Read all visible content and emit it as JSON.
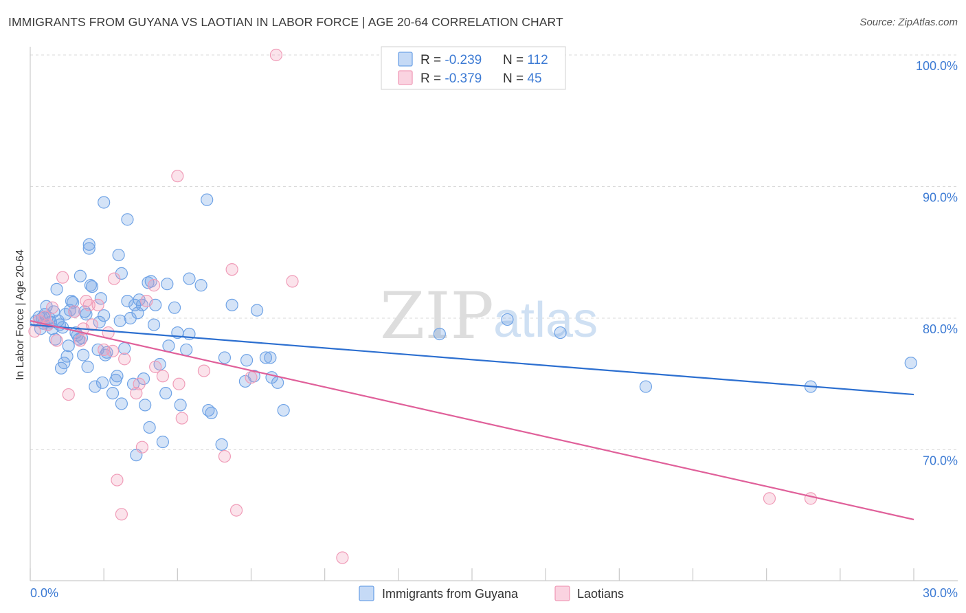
{
  "title": "IMMIGRANTS FROM GUYANA VS LAOTIAN IN LABOR FORCE | AGE 20-64 CORRELATION CHART",
  "source": "Source: ZipAtlas.com",
  "watermark": {
    "zip": "ZIP",
    "atlas": "atlas"
  },
  "legend_top": {
    "rows": [
      {
        "r_label": "R = ",
        "r_value": "-0.239",
        "n_label": "N = ",
        "n_value": "112",
        "color": "#6fa3e6"
      },
      {
        "r_label": "R = ",
        "r_value": "-0.379",
        "n_label": "N = ",
        "n_value": "45",
        "color": "#f09cb8"
      }
    ]
  },
  "chart_data": {
    "type": "scatter",
    "title": "IMMIGRANTS FROM GUYANA VS LAOTIAN IN LABOR FORCE | AGE 20-64 CORRELATION CHART",
    "xlabel": "",
    "ylabel": "In Labor Force | Age 20-64",
    "xlim": [
      0,
      30
    ],
    "ylim": [
      60,
      100
    ],
    "x_tick_labels": {
      "min": "0.0%",
      "max": "30.0%"
    },
    "y_ticks": [
      {
        "value": 70,
        "label": "70.0%"
      },
      {
        "value": 80,
        "label": "80.0%"
      },
      {
        "value": 90,
        "label": "90.0%"
      },
      {
        "value": 100,
        "label": "100.0%"
      }
    ],
    "series": [
      {
        "name": "Immigrants from Guyana",
        "color": "#6fa3e6",
        "line_color": "#2c6fd0",
        "trend": {
          "x0": 0.0,
          "y0": 79.5,
          "x1": 30.0,
          "y1": 74.2
        },
        "points": [
          [
            0.2,
            79.8
          ],
          [
            0.3,
            80.1
          ],
          [
            0.35,
            79.2
          ],
          [
            0.4,
            80.0
          ],
          [
            0.45,
            79.6
          ],
          [
            0.5,
            80.3
          ],
          [
            0.55,
            80.9
          ],
          [
            0.6,
            79.5
          ],
          [
            0.65,
            80.0
          ],
          [
            0.7,
            79.7
          ],
          [
            0.75,
            79.2
          ],
          [
            0.8,
            80.5
          ],
          [
            0.85,
            78.4
          ],
          [
            0.9,
            82.2
          ],
          [
            0.95,
            79.8
          ],
          [
            1.0,
            79.5
          ],
          [
            1.05,
            76.2
          ],
          [
            1.1,
            79.3
          ],
          [
            1.15,
            76.6
          ],
          [
            1.2,
            80.3
          ],
          [
            1.25,
            77.1
          ],
          [
            1.3,
            77.9
          ],
          [
            1.35,
            80.6
          ],
          [
            1.4,
            81.3
          ],
          [
            1.45,
            81.2
          ],
          [
            1.5,
            80.5
          ],
          [
            1.55,
            78.9
          ],
          [
            1.6,
            78.7
          ],
          [
            1.65,
            78.4
          ],
          [
            1.7,
            83.2
          ],
          [
            1.75,
            78.5
          ],
          [
            1.8,
            77.2
          ],
          [
            1.85,
            80.5
          ],
          [
            1.9,
            80.3
          ],
          [
            1.95,
            76.3
          ],
          [
            2.0,
            85.6
          ],
          [
            2.0,
            85.3
          ],
          [
            2.05,
            82.5
          ],
          [
            2.1,
            82.4
          ],
          [
            2.2,
            74.8
          ],
          [
            2.3,
            77.6
          ],
          [
            2.35,
            79.7
          ],
          [
            2.4,
            81.5
          ],
          [
            2.45,
            75.1
          ],
          [
            2.5,
            80.2
          ],
          [
            2.5,
            88.8
          ],
          [
            2.55,
            77.2
          ],
          [
            2.6,
            77.4
          ],
          [
            2.8,
            74.3
          ],
          [
            2.9,
            75.3
          ],
          [
            2.95,
            75.6
          ],
          [
            3.0,
            84.8
          ],
          [
            3.05,
            79.8
          ],
          [
            3.1,
            73.5
          ],
          [
            3.1,
            83.4
          ],
          [
            3.2,
            77.7
          ],
          [
            3.3,
            87.5
          ],
          [
            3.3,
            81.3
          ],
          [
            3.4,
            80.0
          ],
          [
            3.5,
            75.0
          ],
          [
            3.55,
            81.0
          ],
          [
            3.6,
            69.6
          ],
          [
            3.65,
            80.4
          ],
          [
            3.7,
            81.4
          ],
          [
            3.8,
            81.0
          ],
          [
            3.85,
            75.4
          ],
          [
            3.9,
            73.4
          ],
          [
            4.0,
            82.7
          ],
          [
            4.05,
            71.7
          ],
          [
            4.1,
            82.8
          ],
          [
            4.2,
            79.5
          ],
          [
            4.25,
            81.0
          ],
          [
            4.4,
            76.5
          ],
          [
            4.5,
            70.6
          ],
          [
            4.6,
            74.3
          ],
          [
            4.65,
            82.6
          ],
          [
            4.7,
            77.9
          ],
          [
            4.9,
            80.8
          ],
          [
            5.0,
            78.9
          ],
          [
            5.1,
            73.4
          ],
          [
            5.3,
            77.6
          ],
          [
            5.4,
            78.8
          ],
          [
            5.4,
            83.0
          ],
          [
            5.8,
            82.5
          ],
          [
            6.0,
            89.0
          ],
          [
            6.05,
            73.0
          ],
          [
            6.15,
            72.8
          ],
          [
            6.5,
            70.4
          ],
          [
            6.6,
            77.0
          ],
          [
            6.85,
            81.0
          ],
          [
            7.3,
            75.2
          ],
          [
            7.35,
            76.8
          ],
          [
            7.6,
            75.6
          ],
          [
            7.7,
            80.6
          ],
          [
            8.0,
            77.0
          ],
          [
            8.15,
            77.0
          ],
          [
            8.2,
            75.5
          ],
          [
            8.4,
            75.1
          ],
          [
            8.6,
            73.0
          ],
          [
            13.9,
            78.8
          ],
          [
            16.2,
            79.9
          ],
          [
            18.0,
            78.9
          ],
          [
            20.9,
            74.8
          ],
          [
            26.5,
            74.8
          ],
          [
            29.9,
            76.6
          ]
        ]
      },
      {
        "name": "Laotians",
        "color": "#f09cb8",
        "line_color": "#e0609a",
        "trend": {
          "x0": 0.0,
          "y0": 79.8,
          "x1": 30.0,
          "y1": 64.7
        },
        "points": [
          [
            0.15,
            79.0
          ],
          [
            0.3,
            79.8
          ],
          [
            0.5,
            80.1
          ],
          [
            0.6,
            79.5
          ],
          [
            0.75,
            80.8
          ],
          [
            0.9,
            78.3
          ],
          [
            1.1,
            83.1
          ],
          [
            1.3,
            74.2
          ],
          [
            1.5,
            80.5
          ],
          [
            1.7,
            78.3
          ],
          [
            1.8,
            79.2
          ],
          [
            1.9,
            81.3
          ],
          [
            2.0,
            81.0
          ],
          [
            2.1,
            79.5
          ],
          [
            2.3,
            81.0
          ],
          [
            2.5,
            77.6
          ],
          [
            2.65,
            78.9
          ],
          [
            2.8,
            77.5
          ],
          [
            2.85,
            83.0
          ],
          [
            2.95,
            67.7
          ],
          [
            3.1,
            65.1
          ],
          [
            3.2,
            76.9
          ],
          [
            3.6,
            74.3
          ],
          [
            3.7,
            75.0
          ],
          [
            3.8,
            70.2
          ],
          [
            3.95,
            81.3
          ],
          [
            4.2,
            82.5
          ],
          [
            4.25,
            76.3
          ],
          [
            4.5,
            75.6
          ],
          [
            5.0,
            90.8
          ],
          [
            5.05,
            75.0
          ],
          [
            5.15,
            72.4
          ],
          [
            5.9,
            76.0
          ],
          [
            6.6,
            69.5
          ],
          [
            6.85,
            83.7
          ],
          [
            7.0,
            65.4
          ],
          [
            7.5,
            75.5
          ],
          [
            8.35,
            100.0
          ],
          [
            8.9,
            82.8
          ],
          [
            10.6,
            61.8
          ],
          [
            25.1,
            66.3
          ],
          [
            26.5,
            66.3
          ]
        ]
      }
    ]
  },
  "legend_bottom": [
    {
      "label": "Immigrants from Guyana",
      "color": "#6fa3e6"
    },
    {
      "label": "Laotians",
      "color": "#f09cb8"
    }
  ]
}
